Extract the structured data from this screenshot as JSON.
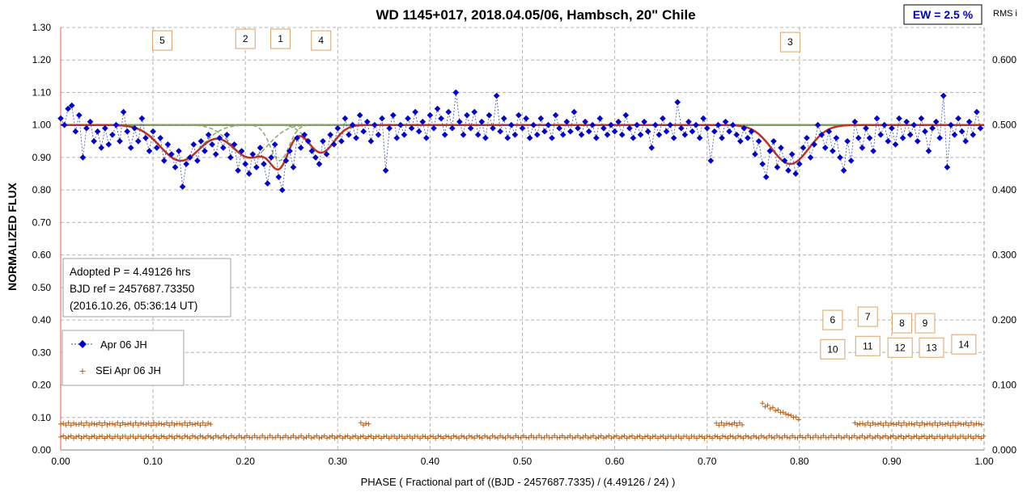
{
  "chart_data": {
    "type": "scatter",
    "title": "WD 1145+017, 2018.04.05/06, Hambsch, 20\" Chile",
    "ew_label": "EW =  2.5 %",
    "rms_label": "RMS i",
    "xlabel": "PHASE  ( Fractional part of ((BJD - 2457687.7335)  / (4.49126  / 24)  )",
    "ylabel": "NORMALIZED  FLUX",
    "xlim": [
      0,
      1
    ],
    "ylim": [
      0,
      1.3
    ],
    "y2lim": [
      0,
      0.65
    ],
    "x_ticks": [
      "0.00",
      "0.10",
      "0.20",
      "0.30",
      "0.40",
      "0.50",
      "0.60",
      "0.70",
      "0.80",
      "0.90",
      "1.00"
    ],
    "y_ticks": [
      "0.00",
      "0.10",
      "0.20",
      "0.30",
      "0.40",
      "0.50",
      "0.60",
      "0.70",
      "0.80",
      "0.90",
      "1.00",
      "1.10",
      "1.20",
      "1.30"
    ],
    "y2_ticks": [
      "0.000",
      "0.100",
      "0.200",
      "0.300",
      "0.400",
      "0.500",
      "0.600"
    ],
    "grid": true,
    "info_box": [
      "Adopted P = 4.49126 hrs",
      "BJD ref = 2457687.73350",
      "(2016.10.26, 05:36:14 UT)"
    ],
    "legend_position": "left-lower",
    "legend": [
      {
        "name": "Apr 06 JH",
        "color": "#0000cc"
      },
      {
        "name": "SEi Apr 06 JH",
        "color": "#c06010"
      }
    ],
    "dip_labels": [
      {
        "label": "5",
        "x": 0.11,
        "y": 1.26
      },
      {
        "label": "2",
        "x": 0.2,
        "y": 1.265
      },
      {
        "label": "1",
        "x": 0.238,
        "y": 1.265
      },
      {
        "label": "4",
        "x": 0.282,
        "y": 1.26
      },
      {
        "label": "3",
        "x": 0.79,
        "y": 1.255
      },
      {
        "label": "6",
        "x": 0.836,
        "y": 0.4
      },
      {
        "label": "7",
        "x": 0.874,
        "y": 0.41
      },
      {
        "label": "8",
        "x": 0.911,
        "y": 0.39
      },
      {
        "label": "9",
        "x": 0.936,
        "y": 0.39
      },
      {
        "label": "10",
        "x": 0.836,
        "y": 0.31
      },
      {
        "label": "11",
        "x": 0.874,
        "y": 0.32
      },
      {
        "label": "12",
        "x": 0.909,
        "y": 0.315
      },
      {
        "label": "13",
        "x": 0.943,
        "y": 0.315
      },
      {
        "label": "14",
        "x": 0.978,
        "y": 0.325
      }
    ],
    "flux_model": {
      "name": "model",
      "color": "#c0321e",
      "baseline": 1.0,
      "dips": [
        {
          "center": 0.13,
          "depth": 0.11,
          "width": 0.022
        },
        {
          "center": 0.205,
          "depth": 0.1,
          "width": 0.02
        },
        {
          "center": 0.237,
          "depth": 0.11,
          "width": 0.01
        },
        {
          "center": 0.282,
          "depth": 0.085,
          "width": 0.014
        },
        {
          "center": 0.79,
          "depth": 0.12,
          "width": 0.02
        }
      ]
    },
    "flux_points": [
      [
        0.0,
        1.02
      ],
      [
        0.004,
        1.0
      ],
      [
        0.008,
        1.05
      ],
      [
        0.012,
        1.06
      ],
      [
        0.016,
        0.98
      ],
      [
        0.02,
        1.03
      ],
      [
        0.024,
        0.9
      ],
      [
        0.028,
        0.99
      ],
      [
        0.032,
        1.01
      ],
      [
        0.036,
        0.95
      ],
      [
        0.04,
        0.98
      ],
      [
        0.044,
        0.93
      ],
      [
        0.048,
        0.99
      ],
      [
        0.052,
        0.94
      ],
      [
        0.056,
        0.97
      ],
      [
        0.06,
        1.0
      ],
      [
        0.064,
        0.95
      ],
      [
        0.068,
        1.04
      ],
      [
        0.072,
        0.98
      ],
      [
        0.076,
        0.93
      ],
      [
        0.08,
        0.99
      ],
      [
        0.084,
        0.95
      ],
      [
        0.088,
        1.02
      ],
      [
        0.092,
        0.96
      ],
      [
        0.096,
        0.92
      ],
      [
        0.1,
        0.98
      ],
      [
        0.104,
        0.93
      ],
      [
        0.108,
        0.96
      ],
      [
        0.112,
        0.89
      ],
      [
        0.116,
        0.94
      ],
      [
        0.12,
        0.91
      ],
      [
        0.124,
        0.87
      ],
      [
        0.128,
        0.92
      ],
      [
        0.132,
        0.81
      ],
      [
        0.136,
        0.88
      ],
      [
        0.14,
        0.9
      ],
      [
        0.144,
        0.94
      ],
      [
        0.148,
        0.89
      ],
      [
        0.152,
        0.95
      ],
      [
        0.156,
        0.92
      ],
      [
        0.16,
        0.97
      ],
      [
        0.164,
        0.94
      ],
      [
        0.168,
        0.91
      ],
      [
        0.172,
        0.96
      ],
      [
        0.176,
        0.93
      ],
      [
        0.18,
        0.97
      ],
      [
        0.184,
        0.9
      ],
      [
        0.188,
        0.94
      ],
      [
        0.192,
        0.86
      ],
      [
        0.196,
        0.92
      ],
      [
        0.2,
        0.88
      ],
      [
        0.204,
        0.85
      ],
      [
        0.208,
        0.91
      ],
      [
        0.212,
        0.87
      ],
      [
        0.216,
        0.93
      ],
      [
        0.22,
        0.88
      ],
      [
        0.224,
        0.82
      ],
      [
        0.228,
        0.9
      ],
      [
        0.232,
        0.94
      ],
      [
        0.236,
        0.84
      ],
      [
        0.24,
        0.8
      ],
      [
        0.244,
        0.89
      ],
      [
        0.248,
        0.92
      ],
      [
        0.252,
        0.87
      ],
      [
        0.256,
        0.96
      ],
      [
        0.26,
        0.93
      ],
      [
        0.264,
        0.97
      ],
      [
        0.268,
        0.95
      ],
      [
        0.272,
        0.92
      ],
      [
        0.276,
        0.9
      ],
      [
        0.28,
        0.88
      ],
      [
        0.284,
        0.95
      ],
      [
        0.288,
        0.91
      ],
      [
        0.292,
        0.97
      ],
      [
        0.296,
        0.94
      ],
      [
        0.3,
        0.99
      ],
      [
        0.304,
        0.95
      ],
      [
        0.308,
        1.02
      ],
      [
        0.312,
        0.97
      ],
      [
        0.316,
        1.0
      ],
      [
        0.32,
        0.96
      ],
      [
        0.324,
        1.03
      ],
      [
        0.328,
        0.98
      ],
      [
        0.332,
        1.01
      ],
      [
        0.336,
        0.95
      ],
      [
        0.34,
        1.0
      ],
      [
        0.344,
        0.97
      ],
      [
        0.348,
        1.02
      ],
      [
        0.352,
        0.86
      ],
      [
        0.356,
        0.99
      ],
      [
        0.36,
        1.03
      ],
      [
        0.364,
        0.96
      ],
      [
        0.368,
        1.0
      ],
      [
        0.372,
        0.97
      ],
      [
        0.376,
        1.02
      ],
      [
        0.38,
        0.99
      ],
      [
        0.384,
        1.04
      ],
      [
        0.388,
        0.98
      ],
      [
        0.392,
        1.01
      ],
      [
        0.396,
        0.96
      ],
      [
        0.4,
        1.03
      ],
      [
        0.404,
        0.99
      ],
      [
        0.408,
        1.05
      ],
      [
        0.412,
        1.02
      ],
      [
        0.416,
        0.97
      ],
      [
        0.42,
        1.04
      ],
      [
        0.424,
        0.99
      ],
      [
        0.428,
        1.1
      ],
      [
        0.432,
        1.01
      ],
      [
        0.436,
        0.97
      ],
      [
        0.44,
        1.03
      ],
      [
        0.444,
        0.99
      ],
      [
        0.448,
        1.04
      ],
      [
        0.452,
        0.97
      ],
      [
        0.456,
        1.01
      ],
      [
        0.46,
        0.96
      ],
      [
        0.464,
        1.03
      ],
      [
        0.468,
        0.99
      ],
      [
        0.472,
        1.09
      ],
      [
        0.476,
        0.98
      ],
      [
        0.48,
        1.02
      ],
      [
        0.484,
        0.96
      ],
      [
        0.488,
        1.0
      ],
      [
        0.492,
        0.97
      ],
      [
        0.496,
        1.03
      ],
      [
        0.5,
        0.99
      ],
      [
        0.504,
        1.02
      ],
      [
        0.508,
        0.96
      ],
      [
        0.512,
        1.0
      ],
      [
        0.516,
        0.97
      ],
      [
        0.52,
        1.02
      ],
      [
        0.524,
        0.98
      ],
      [
        0.528,
        1.0
      ],
      [
        0.532,
        0.96
      ],
      [
        0.536,
        1.03
      ],
      [
        0.54,
        0.99
      ],
      [
        0.544,
        0.97
      ],
      [
        0.548,
        1.01
      ],
      [
        0.552,
        0.98
      ],
      [
        0.556,
        1.04
      ],
      [
        0.56,
        0.99
      ],
      [
        0.564,
        0.97
      ],
      [
        0.568,
        1.01
      ],
      [
        0.572,
        0.98
      ],
      [
        0.576,
        1.0
      ],
      [
        0.58,
        0.96
      ],
      [
        0.584,
        1.02
      ],
      [
        0.588,
        0.99
      ],
      [
        0.592,
        0.97
      ],
      [
        0.596,
        1.0
      ],
      [
        0.6,
        0.98
      ],
      [
        0.604,
        1.01
      ],
      [
        0.608,
        0.97
      ],
      [
        0.612,
        1.03
      ],
      [
        0.616,
        0.99
      ],
      [
        0.62,
        0.96
      ],
      [
        0.624,
        1.0
      ],
      [
        0.628,
        0.97
      ],
      [
        0.632,
        1.01
      ],
      [
        0.636,
        0.98
      ],
      [
        0.64,
        0.93
      ],
      [
        0.644,
        1.0
      ],
      [
        0.648,
        0.97
      ],
      [
        0.652,
        1.02
      ],
      [
        0.656,
        0.98
      ],
      [
        0.66,
        1.0
      ],
      [
        0.664,
        0.96
      ],
      [
        0.668,
        1.07
      ],
      [
        0.672,
        0.99
      ],
      [
        0.676,
        0.97
      ],
      [
        0.68,
        1.01
      ],
      [
        0.684,
        0.98
      ],
      [
        0.688,
        1.0
      ],
      [
        0.692,
        0.96
      ],
      [
        0.696,
        1.02
      ],
      [
        0.7,
        0.99
      ],
      [
        0.704,
        0.89
      ],
      [
        0.708,
        0.98
      ],
      [
        0.712,
        1.0
      ],
      [
        0.716,
        0.96
      ],
      [
        0.72,
        1.01
      ],
      [
        0.724,
        0.98
      ],
      [
        0.728,
        1.0
      ],
      [
        0.732,
        0.97
      ],
      [
        0.736,
        0.95
      ],
      [
        0.74,
        0.99
      ],
      [
        0.744,
        0.96
      ],
      [
        0.748,
        0.98
      ],
      [
        0.752,
        0.91
      ],
      [
        0.756,
        0.95
      ],
      [
        0.76,
        0.88
      ],
      [
        0.764,
        0.84
      ],
      [
        0.768,
        0.92
      ],
      [
        0.772,
        0.95
      ],
      [
        0.776,
        0.87
      ],
      [
        0.78,
        0.93
      ],
      [
        0.784,
        0.89
      ],
      [
        0.788,
        0.86
      ],
      [
        0.792,
        0.91
      ],
      [
        0.796,
        0.85
      ],
      [
        0.8,
        0.88
      ],
      [
        0.804,
        0.93
      ],
      [
        0.808,
        0.96
      ],
      [
        0.812,
        0.9
      ],
      [
        0.816,
        0.94
      ],
      [
        0.82,
        1.0
      ],
      [
        0.824,
        0.97
      ],
      [
        0.828,
        0.93
      ],
      [
        0.832,
        0.98
      ],
      [
        0.836,
        0.92
      ],
      [
        0.84,
        0.96
      ],
      [
        0.844,
        0.9
      ],
      [
        0.848,
        0.86
      ],
      [
        0.852,
        0.95
      ],
      [
        0.856,
        0.89
      ],
      [
        0.86,
        1.01
      ],
      [
        0.864,
        0.96
      ],
      [
        0.868,
        0.93
      ],
      [
        0.872,
        0.99
      ],
      [
        0.876,
        0.96
      ],
      [
        0.88,
        0.92
      ],
      [
        0.884,
        1.02
      ],
      [
        0.888,
        0.97
      ],
      [
        0.892,
        1.0
      ],
      [
        0.896,
        0.95
      ],
      [
        0.9,
        0.99
      ],
      [
        0.904,
        0.94
      ],
      [
        0.908,
        1.02
      ],
      [
        0.912,
        0.96
      ],
      [
        0.916,
        1.01
      ],
      [
        0.92,
        0.97
      ],
      [
        0.924,
        1.0
      ],
      [
        0.928,
        0.95
      ],
      [
        0.932,
        1.02
      ],
      [
        0.936,
        0.98
      ],
      [
        0.94,
        0.92
      ],
      [
        0.944,
        0.99
      ],
      [
        0.948,
        1.01
      ],
      [
        0.952,
        0.96
      ],
      [
        0.956,
        1.09
      ],
      [
        0.96,
        0.87
      ],
      [
        0.964,
        1.0
      ],
      [
        0.968,
        0.97
      ],
      [
        0.972,
        1.02
      ],
      [
        0.976,
        0.98
      ],
      [
        0.98,
        0.95
      ],
      [
        0.984,
        1.01
      ],
      [
        0.988,
        0.97
      ],
      [
        0.992,
        1.04
      ],
      [
        0.996,
        0.99
      ]
    ],
    "sei_upper": {
      "level": 0.08,
      "segments": [
        [
          0.0,
          0.165
        ],
        [
          0.325,
          0.335
        ],
        [
          0.71,
          0.74
        ],
        [
          0.86,
          1.0
        ]
      ],
      "bump": {
        "start": 0.76,
        "end": 0.8,
        "peak": 0.14
      }
    },
    "sei_lower": {
      "level": 0.04,
      "segments": [
        [
          0.0,
          1.0
        ]
      ]
    }
  }
}
